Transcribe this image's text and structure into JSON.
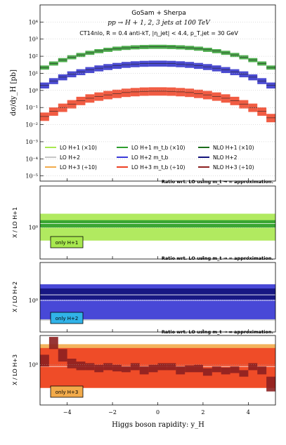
{
  "chart_data": [
    {
      "type": "line",
      "yscale": "log",
      "xlim": [
        -5.2,
        5.2
      ],
      "ylim": [
        5e-06,
        100000
      ],
      "ylabel": "dσ/dy_H [pb]",
      "annotation": {
        "line1": "GoSam + Sherpa",
        "line2": "pp → H + 1, 2, 3 jets at 100 TeV",
        "line3": "CT14nlo, R = 0.4 anti-kT, |η_jet| < 4.4, p_T,jet = 30 GeV"
      },
      "ytick_labels": [
        "10⁻⁵",
        "10⁻⁴",
        "10⁻³",
        "10⁻²",
        "10⁻¹",
        "10⁰",
        "10¹",
        "10²",
        "10³",
        "10⁴"
      ],
      "ytick_values": [
        1e-05,
        0.0001,
        0.001,
        0.01,
        0.1,
        1,
        10,
        100,
        1000,
        10000
      ],
      "legend": {
        "columns": [
          [
            "LO H+1 (×10)",
            "LO H+2",
            "LO H+3 (÷10)"
          ],
          [
            "LO H+1 m_t,b (×10)",
            "LO H+2 m_t,b",
            "LO H+3 m_t,b (÷10)"
          ],
          [
            "NLO H+1 (×10)",
            "NLO H+2",
            "NLO H+3 (÷10)"
          ]
        ],
        "colors": [
          [
            "#a8e84f",
            "#c7c7c7",
            "#f2ab4b"
          ],
          [
            "#2e9e2e",
            "#3a3ad8",
            "#ee4022"
          ],
          [
            "#1c6e1c",
            "#12127a",
            "#8c2020"
          ]
        ],
        "placement": "bottom"
      },
      "x": [
        -5.0,
        -4.6,
        -4.2,
        -3.8,
        -3.4,
        -3.0,
        -2.6,
        -2.2,
        -1.8,
        -1.4,
        -1.0,
        -0.6,
        -0.2,
        0.2,
        0.6,
        1.0,
        1.4,
        1.8,
        2.2,
        2.6,
        3.0,
        3.4,
        3.8,
        4.2,
        4.6,
        5.0
      ],
      "series": [
        {
          "name": "NLO H+1 (×10)",
          "color": "#2e9e2e",
          "values": [
            22,
            38,
            60,
            88,
            120,
            160,
            200,
            240,
            280,
            310,
            335,
            350,
            360,
            360,
            350,
            335,
            310,
            280,
            240,
            200,
            160,
            120,
            88,
            60,
            38,
            22
          ],
          "band": [
            0.75,
            1.3
          ]
        },
        {
          "name": "NLO H+2",
          "color": "#2a2ac8",
          "values": [
            2.0,
            3.6,
            6.0,
            9.0,
            12,
            16,
            20,
            24,
            28,
            32,
            35,
            37,
            38,
            38,
            37,
            35,
            32,
            28,
            24,
            20,
            16,
            12,
            9.0,
            6.0,
            3.6,
            2.0
          ],
          "band": [
            0.65,
            1.45
          ]
        },
        {
          "name": "NLO H+3 (÷10)",
          "color": "#ee4022",
          "values": [
            0.03,
            0.06,
            0.1,
            0.16,
            0.25,
            0.35,
            0.45,
            0.55,
            0.65,
            0.75,
            0.82,
            0.88,
            0.9,
            0.9,
            0.88,
            0.82,
            0.75,
            0.65,
            0.55,
            0.45,
            0.35,
            0.25,
            0.16,
            0.1,
            0.06,
            0.025
          ],
          "band": [
            0.55,
            1.7
          ]
        }
      ]
    },
    {
      "type": "line",
      "yscale": "log",
      "xlim": [
        -5.2,
        5.2
      ],
      "ylim": [
        0.55,
        2.2
      ],
      "ylabel": "X / LO H+1",
      "header": "Ratio wrt. LO using m_t → ∞ approximation.",
      "ytick_labels": [
        "10⁰"
      ],
      "ytick_values": [
        1
      ],
      "badge": {
        "text": "only H+1",
        "color": "#a8e84f"
      },
      "bands": [
        {
          "name": "LO H+1 (×10)",
          "color": "#a8e84f",
          "lower": 0.78,
          "upper": 1.3,
          "center": 1.0
        },
        {
          "name": "NLO H+1 (×10)",
          "color": "#2e9e2e",
          "lower": 1.0,
          "upper": 1.15,
          "center": 1.08
        }
      ]
    },
    {
      "type": "line",
      "yscale": "log",
      "xlim": [
        -5.2,
        5.2
      ],
      "ylim": [
        0.45,
        2.6
      ],
      "ylabel": "X / LO H+2",
      "header": "Ratio wrt. LO using m_t → ∞ approximation.",
      "ytick_labels": [
        "10⁰"
      ],
      "ytick_values": [
        1
      ],
      "badge": {
        "text": "only H+2",
        "color": "#31b3e8"
      },
      "bands": [
        {
          "name": "LO H+2",
          "color": "#c7c7c7",
          "lower": 0.6,
          "upper": 1.5,
          "center": 1.0
        },
        {
          "name": "LO H+2 m_t,b",
          "color": "#3a3ad8",
          "lower": 0.62,
          "upper": 1.5,
          "center": 1.0
        },
        {
          "name": "NLO H+2",
          "color": "#12127a",
          "lower": 1.02,
          "upper": 1.35,
          "center": 1.15
        }
      ]
    },
    {
      "type": "line",
      "yscale": "log",
      "xlim": [
        -5.2,
        5.2
      ],
      "ylim": [
        0.3,
        2.4
      ],
      "ylabel": "X / LO H+3",
      "header": "Ratio wrt. LO using m_t → ∞ approximation.",
      "ytick_labels": [
        "10⁰"
      ],
      "ytick_values": [
        1
      ],
      "badge": {
        "text": "only H+3",
        "color": "#f2ab4b"
      },
      "xlabel": "Higgs boson rapidity:  y_H",
      "xtick_labels": [
        "−4",
        "−2",
        "0",
        "2",
        "4"
      ],
      "xtick_values": [
        -4,
        -2,
        0,
        2,
        4
      ],
      "bands": [
        {
          "name": "LO H+3 (÷10)",
          "color": "#f2ab4b",
          "lower": 0.5,
          "upper": 1.85,
          "center": 1.0
        },
        {
          "name": "LO H+3 m_t,b (÷10)",
          "color": "#ee4022",
          "lower": 0.5,
          "upper": 1.65,
          "center": 0.95
        }
      ],
      "nlo_ratio": {
        "name": "NLO H+3 (÷10)",
        "color": "#8c2020",
        "x": [
          -5.0,
          -4.6,
          -4.2,
          -3.8,
          -3.4,
          -3.0,
          -2.6,
          -2.2,
          -1.8,
          -1.4,
          -1.0,
          -0.6,
          -0.2,
          0.2,
          0.6,
          1.0,
          1.4,
          1.8,
          2.2,
          2.6,
          3.0,
          3.4,
          3.8,
          4.2,
          4.6,
          5.0
        ],
        "lower": [
          0.95,
          1.6,
          1.1,
          0.9,
          0.85,
          0.85,
          0.8,
          0.85,
          0.82,
          0.8,
          0.85,
          0.75,
          0.8,
          0.85,
          0.85,
          0.75,
          0.8,
          0.8,
          0.72,
          0.8,
          0.75,
          0.78,
          0.7,
          0.85,
          0.75,
          0.45
        ],
        "upper": [
          1.35,
          2.3,
          1.6,
          1.2,
          1.1,
          1.05,
          1.0,
          1.05,
          1.0,
          0.95,
          1.05,
          0.95,
          1.0,
          1.05,
          1.05,
          0.95,
          0.98,
          1.0,
          0.9,
          0.95,
          0.92,
          0.95,
          0.85,
          1.05,
          0.95,
          0.7
        ]
      }
    }
  ]
}
